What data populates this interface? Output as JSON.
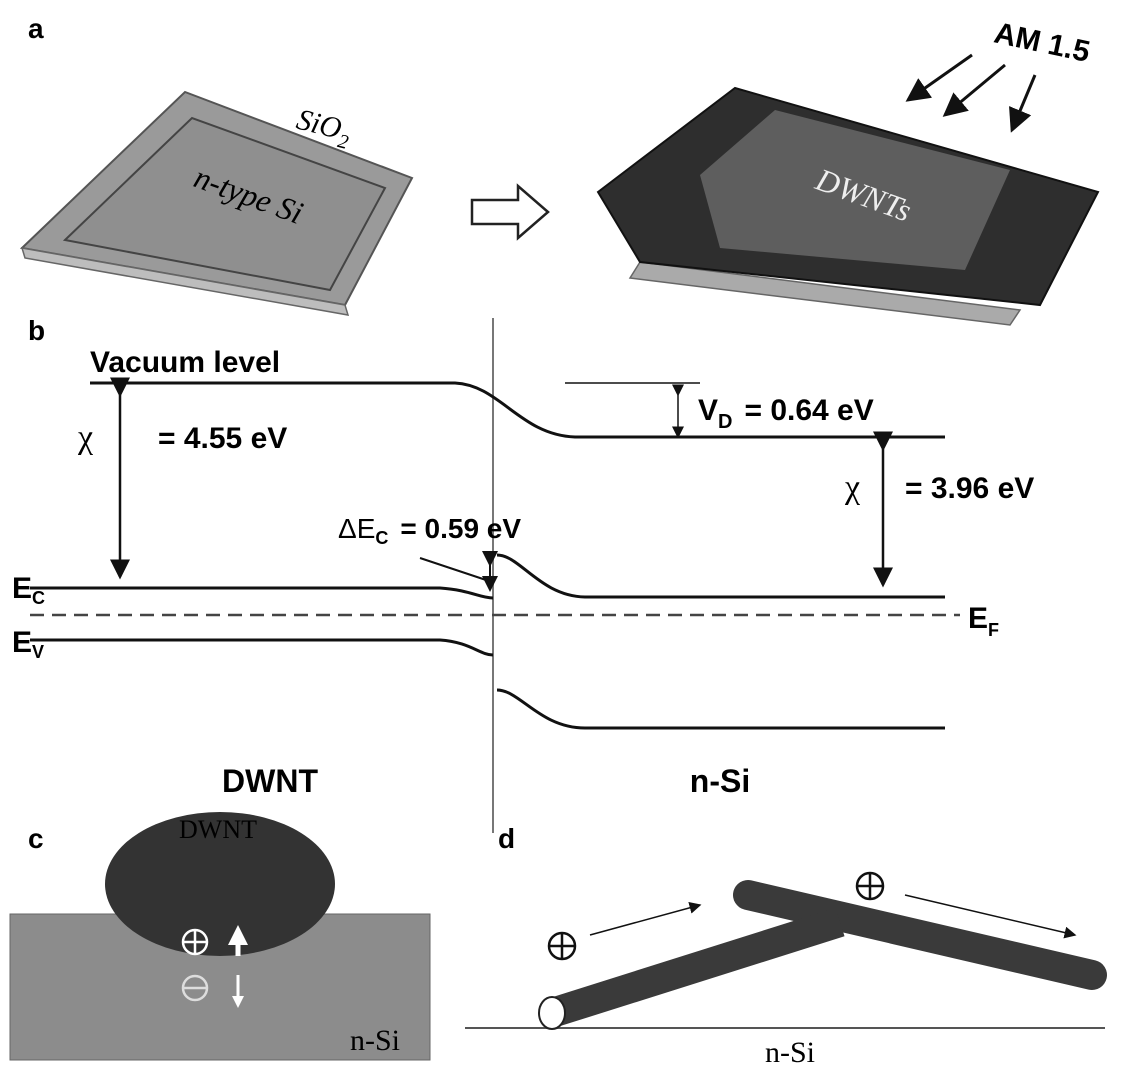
{
  "panels": {
    "a": {
      "label": "a",
      "substrate": {
        "text": "SiO",
        "sub": "2"
      },
      "layer": "n-type Si",
      "light": "AM 1.5",
      "film": "DWNTs"
    },
    "b": {
      "label": "b",
      "vacuum": "Vacuum level",
      "chi_left": {
        "symbol": "χ",
        "text": "= 4.55 eV"
      },
      "vd": {
        "text": "V",
        "sub": "D",
        "rest": "= 0.64 eV"
      },
      "chi_right": {
        "symbol": "χ",
        "text": "= 3.96 eV"
      },
      "dec": {
        "text": "ΔE",
        "sub": "C",
        "rest": "= 0.59 eV"
      },
      "ec": {
        "text": "E",
        "sub": "C"
      },
      "ev": {
        "text": "E",
        "sub": "V"
      },
      "ef": {
        "text": "E",
        "sub": "F"
      },
      "left": "DWNT",
      "right": "n-Si"
    },
    "c": {
      "label": "c",
      "tube": "DWNT",
      "substrate": "n-Si"
    },
    "d": {
      "label": "d",
      "substrate": "n-Si"
    }
  }
}
